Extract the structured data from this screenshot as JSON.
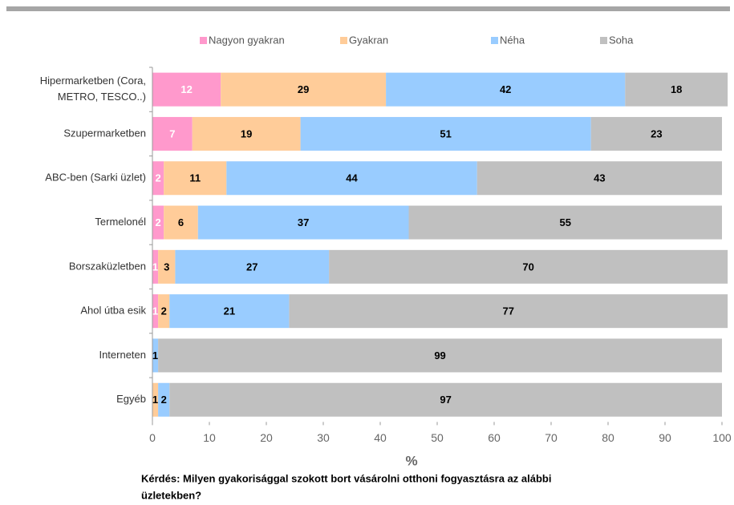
{
  "chart_data": {
    "type": "stacked_bar_horizontal",
    "categories": [
      [
        "Hipermarketben (Cora,",
        "METRO, TESCO..)"
      ],
      "Szupermarketben",
      "ABC-ben (Sarki üzlet)",
      "Termelonél",
      "Borszaküzletben",
      "Ahol útba esik",
      "Interneten",
      "Egyéb"
    ],
    "series": [
      {
        "name": "Nagyon gyakran",
        "color": "#ff99cc",
        "label_color": "#ffffff",
        "values": [
          12,
          7,
          2,
          2,
          1,
          1,
          0,
          0
        ]
      },
      {
        "name": "Gyakran",
        "color": "#ffcc99",
        "label_color": "#000000",
        "values": [
          29,
          19,
          11,
          6,
          3,
          2,
          0,
          1
        ]
      },
      {
        "name": "Néha",
        "color": "#99ccff",
        "label_color": "#000000",
        "values": [
          42,
          51,
          44,
          37,
          27,
          21,
          1,
          2
        ]
      },
      {
        "name": "Soha",
        "color": "#c0c0c0",
        "label_color": "#000000",
        "values": [
          18,
          23,
          43,
          55,
          70,
          77,
          99,
          97
        ]
      }
    ],
    "xlim": [
      0,
      100
    ],
    "xticks": [
      0,
      10,
      20,
      30,
      40,
      50,
      60,
      70,
      80,
      90,
      100
    ],
    "xlabel": "%",
    "question": [
      "Kérdés: Milyen gyakorisággal szokott bort vásárolni otthoni fogyasztásra az alábbi",
      "üzletekben?"
    ],
    "legend": "top"
  }
}
